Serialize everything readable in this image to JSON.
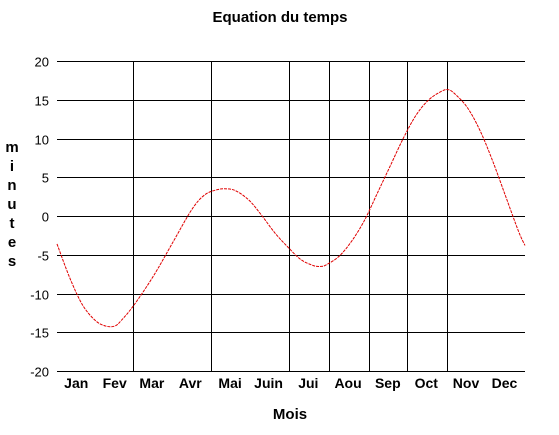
{
  "chart_data": {
    "type": "line",
    "title": "Equation du temps",
    "xlabel": "Mois",
    "ylabel_letters": [
      "m",
      "i",
      "n",
      "u",
      "t",
      "e",
      "s"
    ],
    "ylim": [
      -20,
      20
    ],
    "yticks": [
      -20,
      -15,
      -10,
      -5,
      0,
      5,
      10,
      15,
      20
    ],
    "xlim": [
      0,
      365
    ],
    "month_labels": [
      "Jan",
      "Fev",
      "Mar",
      "Avr",
      "Mai",
      "Juin",
      "Jui",
      "Aou",
      "Sep",
      "Oct",
      "Nov",
      "Dec"
    ],
    "month_label_days": [
      15,
      45,
      74,
      104,
      135,
      165,
      196,
      227,
      258,
      288,
      319,
      349
    ],
    "vertical_grid_days": [
      59,
      120,
      181,
      212,
      243,
      273,
      304
    ],
    "grid": true,
    "series_color": "#e00000",
    "x": [
      0,
      10,
      20,
      30,
      38,
      45,
      50,
      60,
      75,
      90,
      105,
      115,
      125,
      133,
      140,
      150,
      160,
      170,
      180,
      190,
      200,
      206,
      210,
      220,
      230,
      240,
      250,
      260,
      270,
      280,
      290,
      300,
      305,
      310,
      320,
      330,
      340,
      350,
      360,
      365
    ],
    "y": [
      -3.6,
      -8.0,
      -11.5,
      -13.5,
      -14.2,
      -14.2,
      -13.5,
      -11.5,
      -7.8,
      -3.5,
      0.8,
      2.7,
      3.4,
      3.5,
      3.2,
      2.0,
      0.0,
      -2.2,
      -4.0,
      -5.6,
      -6.4,
      -6.5,
      -6.3,
      -5.2,
      -3.2,
      -0.5,
      3.0,
      6.5,
      10.0,
      13.0,
      15.0,
      16.1,
      16.3,
      15.8,
      14.0,
      11.0,
      7.0,
      2.5,
      -2.0,
      -3.8
    ]
  }
}
